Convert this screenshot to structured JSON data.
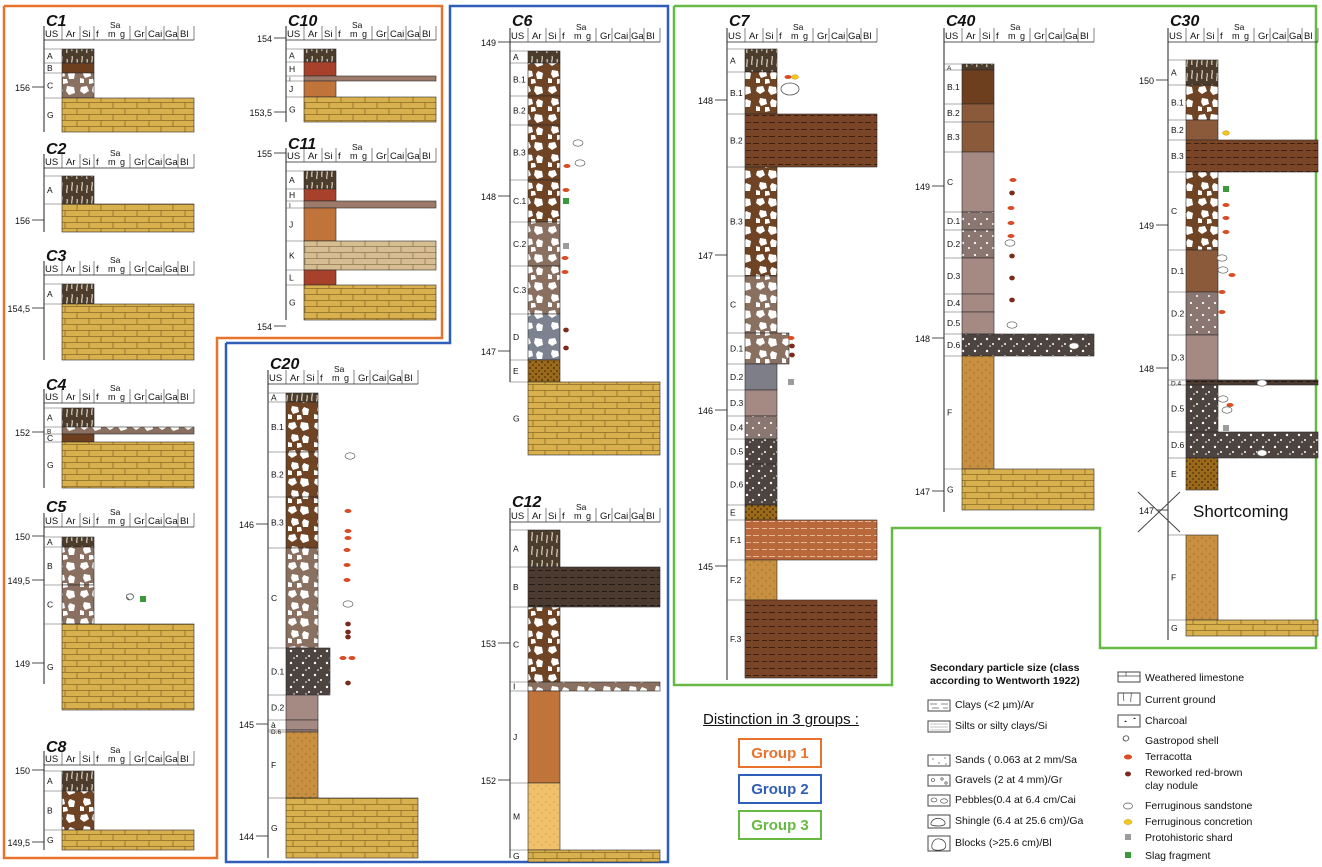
{
  "hdr": {
    "us": "US",
    "ar": "Ar",
    "si": "Si",
    "f": "f",
    "sa": "Sa",
    "m": "m",
    "g": "g",
    "gr": "Gr",
    "cai": "Cai",
    "ga": "Ga",
    "bl": "Bl"
  },
  "colors": {
    "group1": "#e8722c",
    "group2": "#2f5fb8",
    "group3": "#67b943",
    "limestone": "#d8b04e",
    "clay_dark": "#4a3626",
    "clay_brown": "#6d3f1f",
    "terracotta": "#d84c26"
  },
  "columns": [
    {
      "id": "C1",
      "ticks": [
        "156"
      ],
      "units": [
        "A",
        "B",
        "C",
        "G"
      ]
    },
    {
      "id": "C2",
      "ticks": [
        "156"
      ],
      "units": [
        "A",
        "G"
      ]
    },
    {
      "id": "C3",
      "ticks": [
        "154,5"
      ],
      "units": [
        "A",
        "G"
      ]
    },
    {
      "id": "C4",
      "ticks": [
        "152"
      ],
      "units": [
        "A",
        "B",
        "C",
        "G"
      ]
    },
    {
      "id": "C5",
      "ticks": [
        "150",
        "149,5",
        "149"
      ],
      "units": [
        "A",
        "B",
        "C",
        "G"
      ]
    },
    {
      "id": "C8",
      "ticks": [
        "150",
        "149,5"
      ],
      "units": [
        "A",
        "B",
        "G"
      ]
    },
    {
      "id": "C10",
      "ticks": [
        "154",
        "153,5"
      ],
      "units": [
        "A",
        "H",
        "I",
        "J",
        "G"
      ]
    },
    {
      "id": "C11",
      "ticks": [
        "155",
        "154"
      ],
      "units": [
        "A",
        "H",
        "I",
        "J",
        "K",
        "L",
        "G"
      ]
    },
    {
      "id": "C20",
      "ticks": [
        "146",
        "145",
        "144"
      ],
      "units": [
        "A",
        "B.1",
        "B.2",
        "B.3",
        "C",
        "D.1",
        "D.2",
        "à",
        "D.6",
        "F",
        "G"
      ]
    },
    {
      "id": "C6",
      "ticks": [
        "149",
        "148",
        "147"
      ],
      "units": [
        "A",
        "B.1",
        "B.2",
        "B.3",
        "C.1",
        "C.2",
        "C.3",
        "D",
        "E",
        "G"
      ]
    },
    {
      "id": "C12",
      "ticks": [
        "153",
        "152"
      ],
      "units": [
        "A",
        "B",
        "C",
        "I",
        "J",
        "M",
        "G"
      ]
    },
    {
      "id": "C7",
      "ticks": [
        "148",
        "147",
        "146",
        "145"
      ],
      "units": [
        "A",
        "B.1",
        "B.2",
        "B.3",
        "C",
        "D.1",
        "D.2",
        "D.3",
        "D.4",
        "D.5",
        "D.6",
        "E",
        "F.1",
        "F.2",
        "F.3"
      ]
    },
    {
      "id": "C40",
      "ticks": [
        "149",
        "148",
        "147"
      ],
      "units": [
        "A",
        "B.1",
        "B.2",
        "B.3",
        "C",
        "D.1",
        "D.2",
        "D.3",
        "D.4",
        "D.5",
        "D.6",
        "F",
        "G"
      ]
    },
    {
      "id": "C30",
      "ticks": [
        "150",
        "149",
        "148",
        "147"
      ],
      "units": [
        "A",
        "B.1",
        "B.2",
        "B.3",
        "C",
        "D.1",
        "D.2",
        "D.3",
        "D.4",
        "D.5",
        "D.6",
        "E",
        "F",
        "G"
      ]
    }
  ],
  "shortcoming": "Shortcoming",
  "distinction": "Distinction in 3 groups :",
  "groups": [
    "Group 1",
    "Group 2",
    "Group 3"
  ],
  "legend": {
    "title": "Secondary particle size (class according to Wentworth 1922)",
    "sizes": [
      "Clays (<2 µm)/Ar",
      "Silts or silty clays/Si",
      "Sands ( 0.063 at 2 mm/Sa",
      "Gravels (2 at 4 mm)/Gr",
      "Pebbles(0.4 at 6.4 cm/Cai",
      "Shingle (6.4 at 25.6 cm)/Ga",
      "Blocks (>25.6 cm)/Bl"
    ],
    "symbols": [
      "Weathered limestone",
      "Current ground",
      "Charcoal",
      "Gastropod shell",
      "Terracotta",
      "Reworked red-brown clay nodule",
      "Ferruginous sandstone",
      "Ferruginous concretion",
      "Protohistoric shard",
      "Slag fragment"
    ]
  }
}
